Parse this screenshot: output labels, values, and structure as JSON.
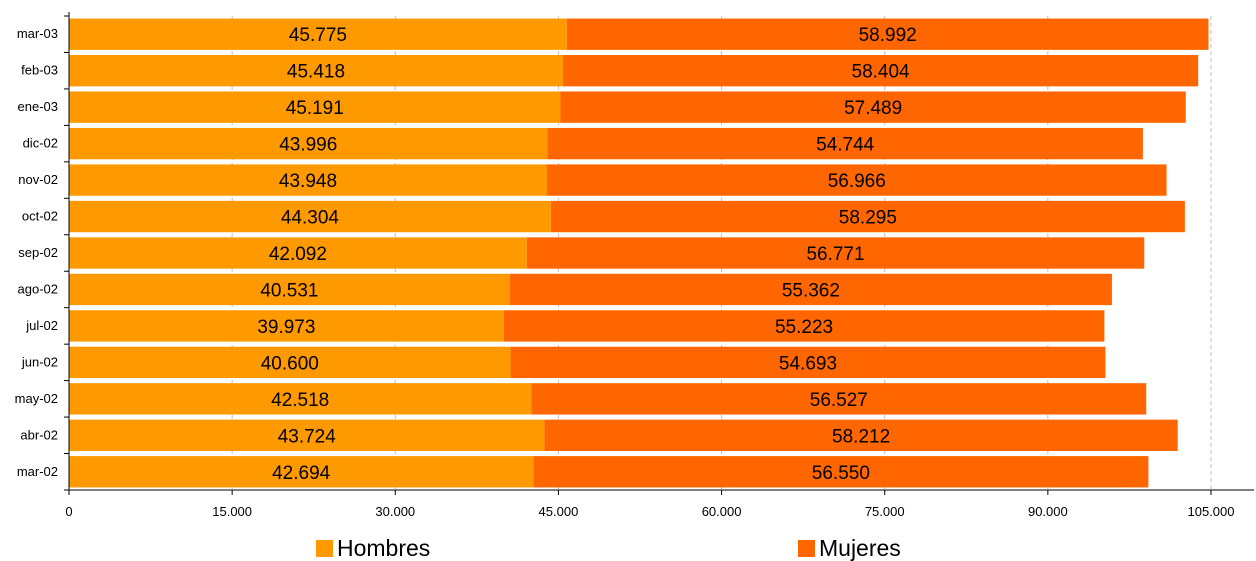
{
  "chart_data": {
    "type": "bar",
    "orientation": "horizontal",
    "stacked": true,
    "categories": [
      "mar-03",
      "feb-03",
      "ene-03",
      "dic-02",
      "nov-02",
      "oct-02",
      "sep-02",
      "ago-02",
      "jul-02",
      "jun-02",
      "may-02",
      "abr-02",
      "mar-02"
    ],
    "series": [
      {
        "name": "Hombres",
        "color": "#FF9900",
        "values": [
          45775,
          45418,
          45191,
          43996,
          43948,
          44304,
          42092,
          40531,
          39973,
          40600,
          42518,
          43724,
          42694
        ],
        "labels": [
          "45.775",
          "45.418",
          "45.191",
          "43.996",
          "43.948",
          "44.304",
          "42.092",
          "40.531",
          "39.973",
          "40.600",
          "42.518",
          "43.724",
          "42.694"
        ]
      },
      {
        "name": "Mujeres",
        "color": "#FF6600",
        "values": [
          58992,
          58404,
          57489,
          54744,
          56966,
          58295,
          56771,
          55362,
          55223,
          54693,
          56527,
          58212,
          56550
        ],
        "labels": [
          "58.992",
          "58.404",
          "57.489",
          "54.744",
          "56.966",
          "58.295",
          "56.771",
          "55.362",
          "55.223",
          "54.693",
          "56.527",
          "58.212",
          "56.550"
        ]
      }
    ],
    "xlim": [
      0,
      105000
    ],
    "xticks": [
      0,
      15000,
      30000,
      45000,
      60000,
      75000,
      90000,
      105000
    ],
    "xtick_labels": [
      "0",
      "15.000",
      "30.000",
      "45.000",
      "60.000",
      "75.000",
      "90.000",
      "105.000"
    ],
    "grid": "vertical dashed",
    "legend_position": "bottom",
    "title": "",
    "xlabel": "",
    "ylabel": ""
  }
}
